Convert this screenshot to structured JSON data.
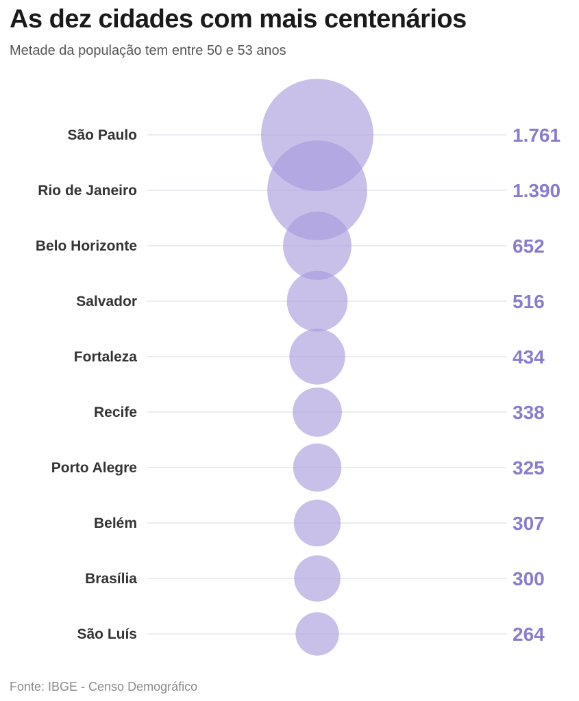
{
  "title": "As dez cidades com mais centenários",
  "subtitle": "Metade da população tem entre 50 e 53 anos",
  "source": "Fonte: IBGE - Censo Demográfico",
  "colors": {
    "bubble": "#a799dc",
    "value_text": "#8a7bcf",
    "label_text": "#333333",
    "gridline": "#e4e9ee"
  },
  "chart_data": {
    "type": "bubble",
    "categories": [
      "São Paulo",
      "Rio de Janeiro",
      "Belo Horizonte",
      "Salvador",
      "Fortaleza",
      "Recife",
      "Porto Alegre",
      "Belém",
      "Brasília",
      "São Luís"
    ],
    "values": [
      1761,
      1390,
      652,
      516,
      434,
      338,
      325,
      307,
      300,
      264
    ],
    "value_labels": [
      "1.761",
      "1.390",
      "652",
      "516",
      "434",
      "338",
      "325",
      "307",
      "300",
      "264"
    ]
  }
}
